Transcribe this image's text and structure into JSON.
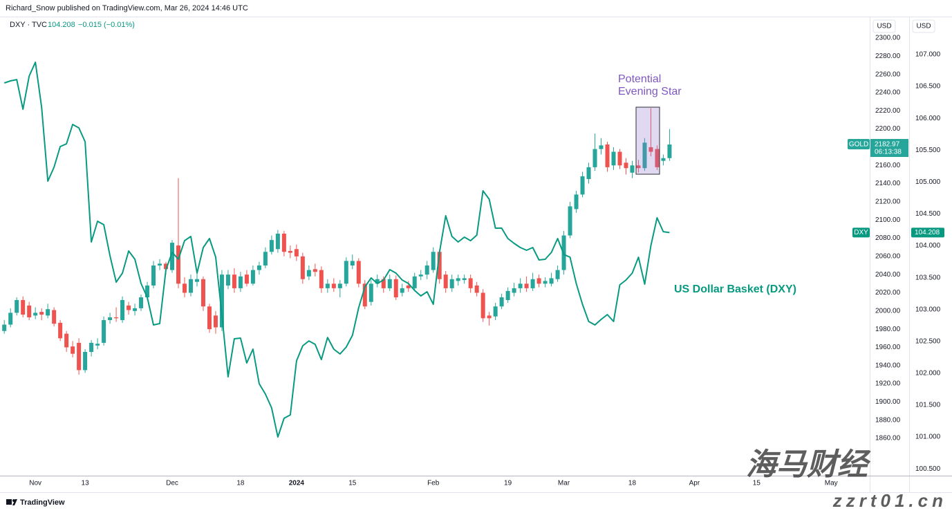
{
  "header": "Richard_Snow published on TradingView.com, Mar 26, 2024 14:46 UTC",
  "footer": "TradingView",
  "watermark": [
    "海马财经",
    "zzrt01.cn"
  ],
  "chart_data": {
    "type": "candlestick",
    "legend": {
      "symbol": "DXY · TVC",
      "last": "104.208",
      "change": "−0.015 (−0.01%)"
    },
    "axis_units": [
      "USD",
      "USD"
    ],
    "annotations": [
      "Potential",
      "Evening Star",
      "US Dollar Basket (DXY)"
    ],
    "categories": [
      null,
      null,
      null,
      null,
      null,
      "Nov",
      null,
      null,
      null,
      null,
      null,
      null,
      null,
      "13",
      null,
      null,
      null,
      null,
      null,
      null,
      null,
      null,
      null,
      null,
      null,
      null,
      null,
      "Dec",
      null,
      null,
      null,
      null,
      null,
      null,
      null,
      null,
      null,
      null,
      "18",
      null,
      null,
      null,
      null,
      null,
      null,
      null,
      null,
      "2024",
      null,
      null,
      null,
      null,
      null,
      null,
      null,
      null,
      "15",
      null,
      null,
      null,
      null,
      null,
      null,
      null,
      null,
      null,
      null,
      null,
      null,
      "Feb",
      null,
      null,
      null,
      null,
      null,
      null,
      null,
      null,
      null,
      null,
      null,
      "19",
      null,
      null,
      null,
      null,
      null,
      null,
      null,
      null,
      "Mar",
      null,
      null,
      null,
      null,
      null,
      null,
      null,
      null,
      null,
      null,
      "18",
      null,
      null,
      null,
      null,
      null,
      null,
      null,
      null,
      null,
      "Apr",
      null,
      null,
      null,
      null,
      null,
      null,
      null,
      null,
      null,
      "15",
      null,
      null,
      null,
      null,
      null,
      null,
      null,
      null,
      null,
      null,
      null,
      "May",
      null,
      null,
      null,
      null,
      null
    ],
    "ylim": [
      1819,
      2322.8
    ],
    "yticks": [
      {
        "value": 2300,
        "label": "2300.00"
      },
      {
        "value": 2280,
        "label": "2280.00"
      },
      {
        "value": 2260,
        "label": "2260.00"
      },
      {
        "value": 2240,
        "label": "2240.00"
      },
      {
        "value": 2220,
        "label": "2220.00"
      },
      {
        "value": 2200,
        "label": "2200.00"
      },
      {
        "value": 2180,
        "label": "2180.00"
      },
      {
        "value": 2160,
        "label": "2160.00"
      },
      {
        "value": 2140,
        "label": "2140.00"
      },
      {
        "value": 2120,
        "label": "2120.00"
      },
      {
        "value": 2100,
        "label": "2100.00"
      },
      {
        "value": 2080,
        "label": "2080.00"
      },
      {
        "value": 2060,
        "label": "2060.00"
      },
      {
        "value": 2040,
        "label": "2040.00"
      },
      {
        "value": 2020,
        "label": "2020.00"
      },
      {
        "value": 2000,
        "label": "2000.00"
      },
      {
        "value": 1980,
        "label": "1980.00"
      },
      {
        "value": 1960,
        "label": "1960.00"
      },
      {
        "value": 1940,
        "label": "1940.00"
      },
      {
        "value": 1920,
        "label": "1920.00"
      },
      {
        "value": 1900,
        "label": "1900.00"
      },
      {
        "value": 1880,
        "label": "1880.00"
      },
      {
        "value": 1860,
        "label": "1860.00"
      }
    ],
    "y2lim": [
      100.393,
      107.586
    ],
    "y2ticks": [
      {
        "value": 107,
        "label": "107.000"
      },
      {
        "value": 106.5,
        "label": "106.500"
      },
      {
        "value": 106,
        "label": "106.000"
      },
      {
        "value": 105.5,
        "label": "105.500"
      },
      {
        "value": 105,
        "label": "105.000"
      },
      {
        "value": 104.5,
        "label": "104.500"
      },
      {
        "value": 104,
        "label": "104.000"
      },
      {
        "value": 103.5,
        "label": "103.500"
      },
      {
        "value": 103,
        "label": "103.000"
      },
      {
        "value": 102.5,
        "label": "102.500"
      },
      {
        "value": 102,
        "label": "102.000"
      },
      {
        "value": 101.5,
        "label": "101.500"
      },
      {
        "value": 101,
        "label": "101.000"
      },
      {
        "value": 100.5,
        "label": "100.500"
      }
    ],
    "grid": false,
    "series": [
      {
        "name": "GOLD",
        "type": "candlestick",
        "color_up": "#26a69a",
        "color_down": "#ef5350",
        "price_label": "2182.97",
        "countdown": "06:13:38",
        "open": [
          1978,
          1985,
          1998,
          2012,
          2006,
          1995,
          1999,
          1995,
          2001,
          1987,
          1975,
          1961,
          1965,
          1935,
          1955,
          1962,
          1965,
          1990,
          1993,
          1990,
          2006,
          2000,
          2003,
          2015,
          2028,
          2050,
          2052,
          2045,
          2072,
          2030,
          2020,
          2032,
          2035,
          2005,
          1995,
          1982,
          2028,
          2040,
          2025,
          2040,
          2030,
          2045,
          2050,
          2065,
          2068,
          2085,
          2066,
          2068,
          2060,
          2038,
          2046,
          2045,
          2025,
          2030,
          2025,
          2030,
          2050,
          2055,
          2030,
          2010,
          2030,
          2035,
          2025,
          2035,
          2020,
          2028,
          2025,
          2038,
          2040,
          2045,
          2065,
          2040,
          2025,
          2033,
          2034,
          2036,
          2028,
          2020,
          1995,
          1994,
          2005,
          2012,
          2020,
          2025,
          2030,
          2025,
          2036,
          2030,
          2030,
          2035,
          2045,
          2083,
          2112,
          2128,
          2145,
          2158,
          2178,
          2183,
          2160,
          2175,
          2163,
          2152,
          2160,
          2157,
          2180,
          2178,
          2165,
          2168,
          null,
          null,
          null,
          null,
          null,
          null,
          null,
          null,
          null,
          null,
          null,
          null,
          null,
          null,
          null,
          null,
          null,
          null,
          null,
          null,
          null,
          null,
          null,
          null,
          null,
          null,
          null,
          null,
          null,
          null,
          null
        ],
        "high": [
          1990,
          2003,
          2015,
          2016,
          2010,
          2004,
          2003,
          2008,
          2004,
          1990,
          1978,
          1967,
          1970,
          1958,
          1968,
          1970,
          1994,
          1998,
          2004,
          2016,
          2010,
          2008,
          2018,
          2032,
          2055,
          2057,
          2054,
          2078,
          2146,
          2037,
          2040,
          2041,
          2038,
          2008,
          2000,
          2045,
          2045,
          2047,
          2043,
          2045,
          2050,
          2054,
          2070,
          2083,
          2089,
          2088,
          2072,
          2073,
          2064,
          2050,
          2052,
          2049,
          2035,
          2036,
          2034,
          2059,
          2062,
          2058,
          2034,
          2034,
          2040,
          2038,
          2040,
          2039,
          2030,
          2033,
          2042,
          2045,
          2055,
          2070,
          2068,
          2044,
          2040,
          2040,
          2040,
          2040,
          2032,
          2024,
          1999,
          2009,
          2019,
          2026,
          2031,
          2036,
          2038,
          2042,
          2040,
          2037,
          2042,
          2050,
          2088,
          2120,
          2132,
          2153,
          2163,
          2195,
          2190,
          2186,
          2180,
          2178,
          2168,
          2165,
          2166,
          2190,
          2223,
          2182,
          2172,
          2200,
          null,
          null,
          null,
          null,
          null,
          null,
          null,
          null,
          null,
          null,
          null,
          null,
          null,
          null,
          null,
          null,
          null,
          null,
          null,
          null,
          null,
          null,
          null,
          null,
          null,
          null,
          null,
          null,
          null,
          null,
          null
        ],
        "low": [
          1975,
          1982,
          1995,
          1993,
          1990,
          1991,
          1990,
          1992,
          1983,
          1967,
          1955,
          1949,
          1930,
          1932,
          1950,
          1958,
          1962,
          1986,
          1988,
          1987,
          1996,
          1995,
          2000,
          2012,
          2025,
          2045,
          2040,
          2042,
          2025,
          2015,
          2016,
          2027,
          2000,
          1976,
          1975,
          1978,
          2024,
          2020,
          2021,
          2027,
          2028,
          2040,
          2047,
          2062,
          2064,
          2060,
          2058,
          2055,
          2030,
          2034,
          2038,
          2020,
          2020,
          2021,
          2015,
          2027,
          2046,
          2026,
          2002,
          2006,
          2026,
          2020,
          2022,
          2012,
          2016,
          2021,
          2022,
          2034,
          2035,
          2042,
          2030,
          2020,
          2021,
          2028,
          2030,
          2020,
          2016,
          1988,
          1984,
          1990,
          2002,
          2009,
          2016,
          2020,
          2021,
          2022,
          2026,
          2026,
          2027,
          2032,
          2040,
          2080,
          2108,
          2125,
          2140,
          2154,
          2172,
          2153,
          2155,
          2156,
          2150,
          2146,
          2152,
          2154,
          2170,
          2155,
          2160,
          2165,
          null,
          null,
          null,
          null,
          null,
          null,
          null,
          null,
          null,
          null,
          null,
          null,
          null,
          null,
          null,
          null,
          null,
          null,
          null,
          null,
          null,
          null,
          null,
          null,
          null,
          null,
          null,
          null,
          null,
          null,
          null
        ],
        "close": [
          1985,
          1998,
          2012,
          1996,
          1993,
          1998,
          1996,
          2002,
          1986,
          1970,
          1960,
          1953,
          1935,
          1955,
          1965,
          1964,
          1990,
          1993,
          1992,
          2012,
          2001,
          2003,
          2015,
          2028,
          2050,
          2052,
          2046,
          2075,
          2030,
          2020,
          2035,
          2035,
          2005,
          1980,
          1982,
          2040,
          2040,
          2025,
          2038,
          2030,
          2045,
          2050,
          2065,
          2078,
          2085,
          2065,
          2064,
          2060,
          2035,
          2045,
          2043,
          2025,
          2030,
          2025,
          2030,
          2055,
          2055,
          2030,
          2005,
          2030,
          2035,
          2025,
          2035,
          2015,
          2025,
          2025,
          2038,
          2040,
          2050,
          2065,
          2035,
          2025,
          2035,
          2036,
          2036,
          2025,
          2020,
          1992,
          1992,
          2005,
          2015,
          2022,
          2025,
          2030,
          2025,
          2035,
          2030,
          2033,
          2036,
          2045,
          2083,
          2115,
          2128,
          2148,
          2158,
          2178,
          2182,
          2158,
          2175,
          2160,
          2157,
          2160,
          2157,
          2185,
          2175,
          2158,
          2168,
          2182.97,
          null,
          null,
          null,
          null,
          null,
          null,
          null,
          null,
          null,
          null,
          null,
          null,
          null,
          null,
          null,
          null,
          null,
          null,
          null,
          null,
          null,
          null,
          null,
          null,
          null,
          null,
          null,
          null,
          null,
          null,
          null
        ]
      },
      {
        "name": "DXY",
        "type": "line",
        "axis": "y2",
        "color": "#089981",
        "price_label": "104.208",
        "values": [
          106.555,
          106.588,
          106.609,
          106.143,
          106.664,
          106.881,
          106.175,
          105.015,
          105.232,
          105.557,
          105.6,
          105.904,
          105.85,
          105.633,
          104.06,
          104.385,
          104.331,
          103.843,
          103.43,
          103.572,
          103.919,
          103.789,
          103.409,
          103.192,
          102.758,
          102.78,
          103.626,
          103.897,
          103.789,
          104.081,
          104.147,
          103.572,
          103.973,
          104.114,
          103.821,
          102.921,
          101.944,
          102.541,
          102.552,
          102.161,
          102.378,
          101.836,
          101.673,
          101.456,
          101.0,
          101.293,
          101.347,
          102.194,
          102.432,
          102.508,
          102.454,
          102.215,
          102.562,
          102.378,
          102.302,
          102.411,
          102.595,
          103.029,
          103.355,
          103.496,
          103.409,
          103.463,
          103.626,
          103.572,
          103.463,
          103.409,
          103.3,
          103.214,
          103.279,
          103.083,
          103.897,
          104.472,
          104.147,
          104.06,
          104.136,
          104.081,
          104.168,
          104.863,
          104.732,
          104.277,
          104.277,
          104.114,
          104.038,
          103.973,
          103.93,
          103.973,
          103.778,
          103.789,
          103.897,
          104.114,
          103.864,
          103.821,
          103.409,
          103.083,
          102.812,
          102.758,
          102.845,
          102.921,
          102.812,
          103.387,
          103.463,
          103.572,
          103.821,
          103.398,
          104.006,
          104.44,
          104.222,
          104.208,
          null,
          null,
          null,
          null,
          null,
          null,
          null,
          null,
          null,
          null,
          null,
          null,
          null,
          null,
          null,
          null,
          null,
          null,
          null,
          null,
          null,
          null,
          null,
          null,
          null,
          null,
          null,
          null,
          null,
          null,
          null
        ]
      }
    ]
  }
}
